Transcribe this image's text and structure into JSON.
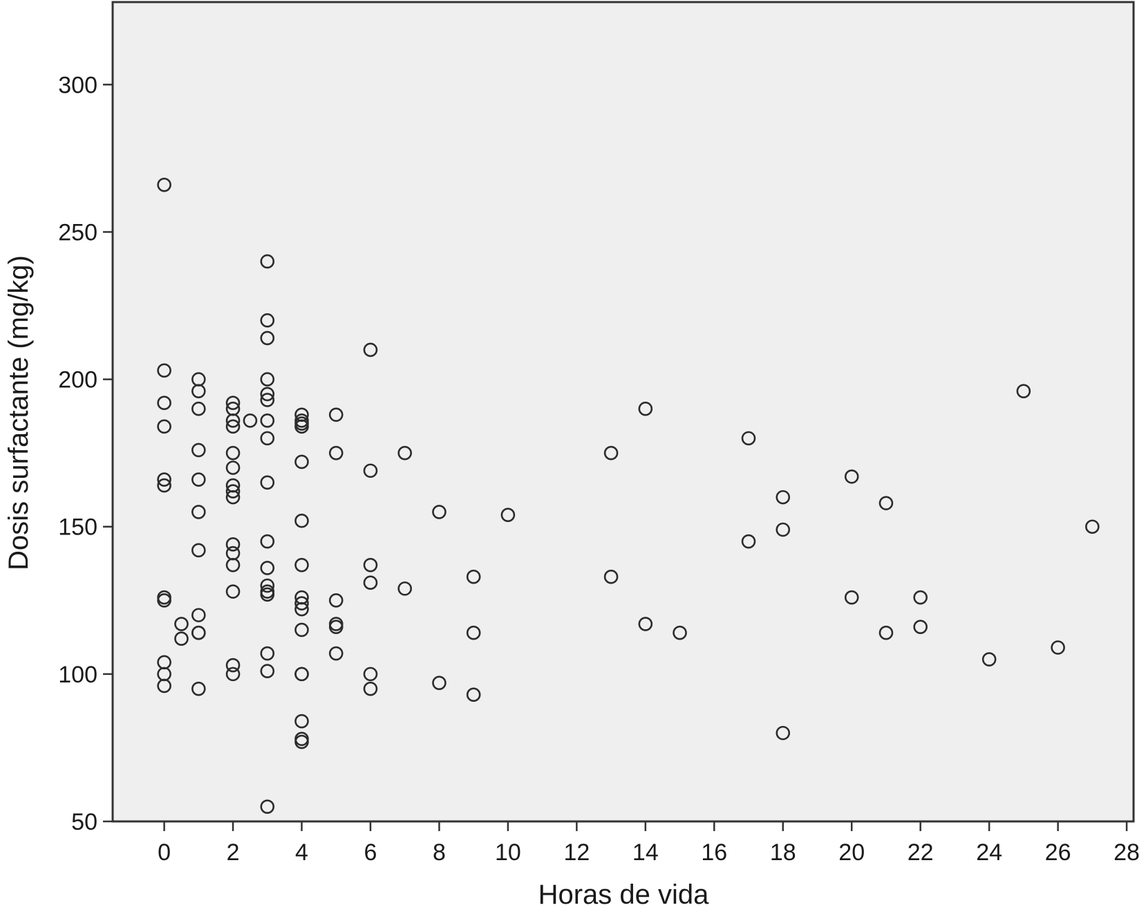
{
  "chart_data": {
    "type": "scatter",
    "title": "",
    "xlabel": "Horas de vida",
    "ylabel": "Dosis surfactante (mg/kg)",
    "xlim": [
      -1.5,
      28.2
    ],
    "ylim": [
      50,
      328
    ],
    "x_ticks": [
      "0",
      "2",
      "4",
      "6",
      "8",
      "10",
      "12",
      "14",
      "16",
      "18",
      "20",
      "22",
      "24",
      "26",
      "28"
    ],
    "y_ticks": [
      "50",
      "100",
      "150",
      "200",
      "250",
      "300"
    ],
    "grid": false,
    "colors": {
      "plot_background": "#efefef",
      "marker_stroke": "#2b2b2b",
      "axis": "#333333"
    },
    "series": [
      {
        "marker": "open-circle",
        "points": [
          [
            0,
            266
          ],
          [
            0,
            203
          ],
          [
            0,
            192
          ],
          [
            0,
            184
          ],
          [
            0,
            166
          ],
          [
            0,
            164
          ],
          [
            0,
            126
          ],
          [
            0,
            125
          ],
          [
            0,
            104
          ],
          [
            0,
            100
          ],
          [
            0,
            96
          ],
          [
            0.5,
            117
          ],
          [
            0.5,
            112
          ],
          [
            1,
            200
          ],
          [
            1,
            196
          ],
          [
            1,
            190
          ],
          [
            1,
            176
          ],
          [
            1,
            166
          ],
          [
            1,
            155
          ],
          [
            1,
            142
          ],
          [
            1,
            120
          ],
          [
            1,
            114
          ],
          [
            1,
            114
          ],
          [
            1,
            95
          ],
          [
            2,
            192
          ],
          [
            2,
            190
          ],
          [
            2,
            186
          ],
          [
            2,
            184
          ],
          [
            2,
            175
          ],
          [
            2,
            170
          ],
          [
            2,
            164
          ],
          [
            2,
            162
          ],
          [
            2,
            160
          ],
          [
            2,
            144
          ],
          [
            2,
            141
          ],
          [
            2,
            137
          ],
          [
            2,
            128
          ],
          [
            2,
            103
          ],
          [
            2,
            100
          ],
          [
            2.5,
            186
          ],
          [
            3,
            240
          ],
          [
            3,
            220
          ],
          [
            3,
            214
          ],
          [
            3,
            200
          ],
          [
            3,
            195
          ],
          [
            3,
            193
          ],
          [
            3,
            186
          ],
          [
            3,
            180
          ],
          [
            3,
            165
          ],
          [
            3,
            145
          ],
          [
            3,
            136
          ],
          [
            3,
            130
          ],
          [
            3,
            128
          ],
          [
            3,
            127
          ],
          [
            3,
            107
          ],
          [
            3,
            101
          ],
          [
            3,
            55
          ],
          [
            4,
            188
          ],
          [
            4,
            186
          ],
          [
            4,
            185
          ],
          [
            4,
            184
          ],
          [
            4,
            172
          ],
          [
            4,
            152
          ],
          [
            4,
            137
          ],
          [
            4,
            126
          ],
          [
            4,
            124
          ],
          [
            4,
            122
          ],
          [
            4,
            115
          ],
          [
            4,
            100
          ],
          [
            4,
            100
          ],
          [
            4,
            84
          ],
          [
            4,
            78
          ],
          [
            4,
            77
          ],
          [
            5,
            188
          ],
          [
            5,
            175
          ],
          [
            5,
            125
          ],
          [
            5,
            117
          ],
          [
            5,
            116
          ],
          [
            5,
            107
          ],
          [
            6,
            210
          ],
          [
            6,
            169
          ],
          [
            6,
            137
          ],
          [
            6,
            131
          ],
          [
            6,
            100
          ],
          [
            6,
            95
          ],
          [
            7,
            175
          ],
          [
            7,
            129
          ],
          [
            8,
            155
          ],
          [
            8,
            97
          ],
          [
            9,
            133
          ],
          [
            9,
            114
          ],
          [
            9,
            93
          ],
          [
            10,
            154
          ],
          [
            13,
            175
          ],
          [
            13,
            133
          ],
          [
            14,
            190
          ],
          [
            14,
            117
          ],
          [
            15,
            114
          ],
          [
            17,
            180
          ],
          [
            17,
            145
          ],
          [
            18,
            160
          ],
          [
            18,
            149
          ],
          [
            18,
            80
          ],
          [
            20,
            167
          ],
          [
            20,
            126
          ],
          [
            21,
            158
          ],
          [
            21,
            114
          ],
          [
            22,
            126
          ],
          [
            22,
            116
          ],
          [
            24,
            105
          ],
          [
            25,
            196
          ],
          [
            26,
            109
          ],
          [
            27,
            150
          ]
        ]
      }
    ]
  }
}
